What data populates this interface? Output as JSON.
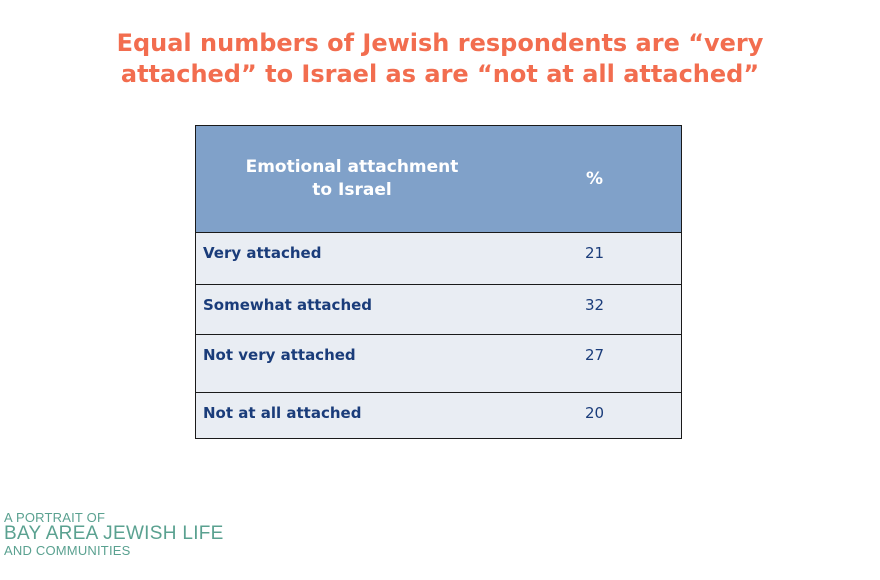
{
  "title": {
    "line1": "Equal numbers of Jewish respondents are “very",
    "line2": "attached” to Israel as are “not at all attached”"
  },
  "table": {
    "header": {
      "col1_line1": "Emotional attachment",
      "col1_line2": "to Israel",
      "col2": "%"
    },
    "rows": [
      {
        "label": "Very attached",
        "value": "21"
      },
      {
        "label": "Somewhat attached",
        "value": "32"
      },
      {
        "label": "Not very attached",
        "value": "27"
      },
      {
        "label": "Not at all attached",
        "value": "20"
      }
    ]
  },
  "logo": {
    "line1": "A PORTRAIT OF",
    "line2": "BAY AREA JEWISH LIFE",
    "line3": "AND COMMUNITIES"
  },
  "colors": {
    "title": "#f26d4f",
    "header_bg": "#80a1c9",
    "row_bg": "#e9edf3",
    "row_text": "#1a3c7a",
    "logo": "#5aa190"
  }
}
